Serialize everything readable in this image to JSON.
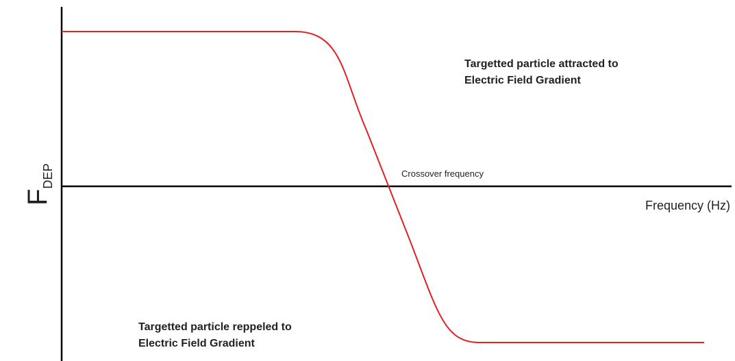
{
  "axes": {
    "y_label": "F",
    "y_label_subscript": "DEP",
    "x_label": "Frequency (Hz)"
  },
  "annotations": {
    "crossover": "Crossover frequency",
    "attracted": [
      "Targetted particle attracted to",
      "Electric Field Gradient"
    ],
    "repelled": [
      "Targetted particle reppeled to",
      "Electric Field Gradient"
    ]
  }
}
